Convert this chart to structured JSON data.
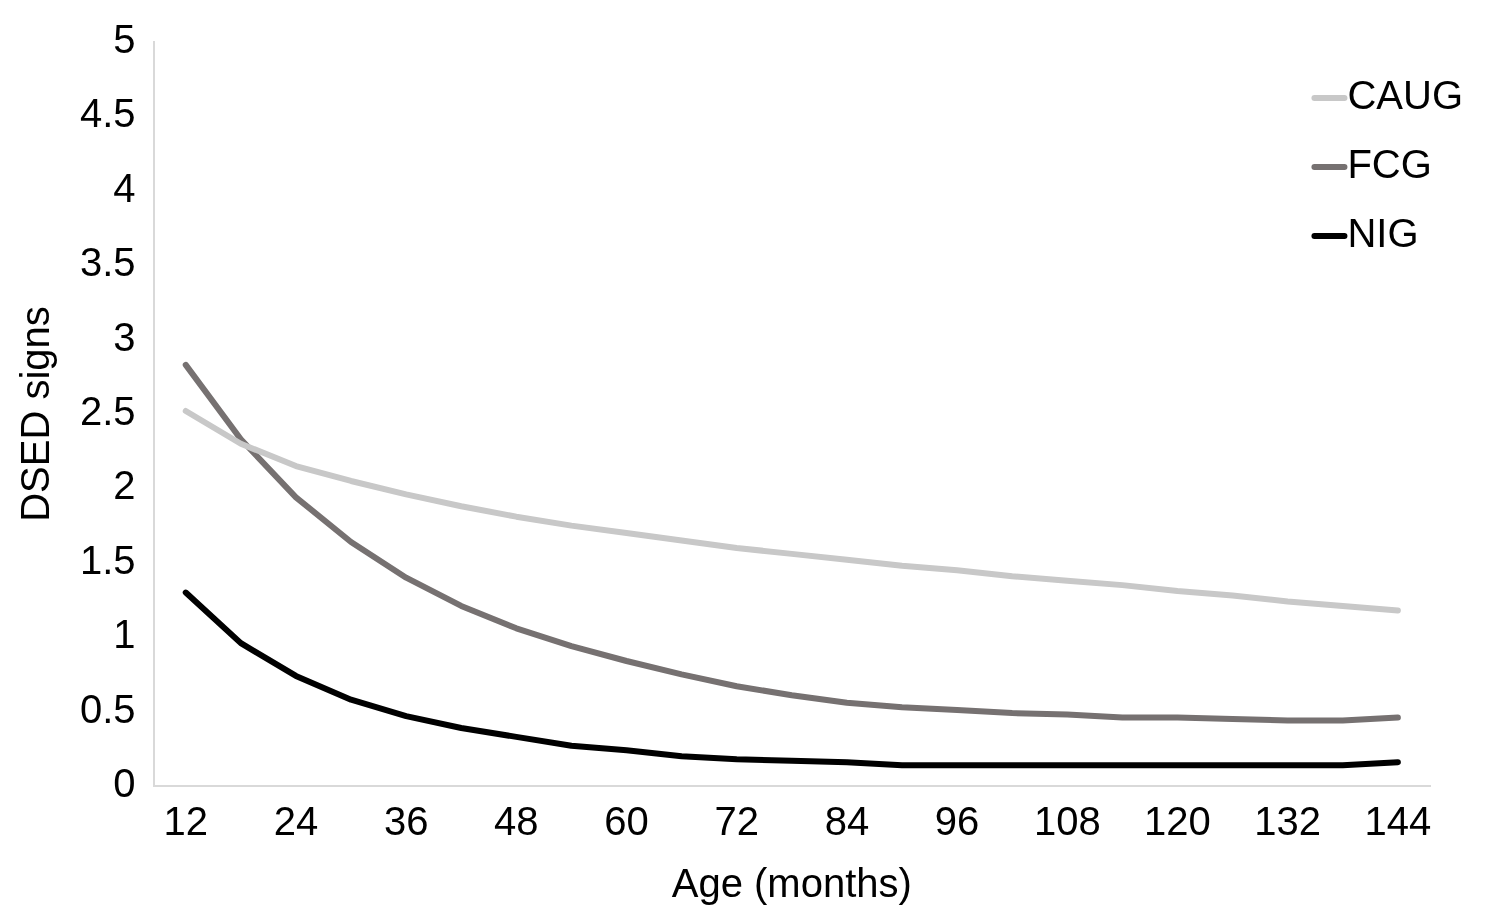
{
  "chart_data": {
    "type": "line",
    "xlabel": "Age (months)",
    "ylabel": "DSED signs",
    "x": [
      12,
      18,
      24,
      30,
      36,
      42,
      48,
      54,
      60,
      66,
      72,
      78,
      84,
      90,
      96,
      102,
      108,
      114,
      120,
      126,
      132,
      138,
      144
    ],
    "xlim": [
      8.5,
      147.5
    ],
    "xticks": [
      12,
      24,
      36,
      48,
      60,
      72,
      84,
      96,
      108,
      120,
      132,
      144
    ],
    "ylim": [
      0,
      5
    ],
    "yticks": [
      0,
      0.5,
      1,
      1.5,
      2,
      2.5,
      3,
      3.5,
      4,
      4.5,
      5
    ],
    "grid": false,
    "legend": "top right",
    "marker": "none",
    "line_style": "solid",
    "series": [
      {
        "name": "CAUG",
        "color": "#c8c8c8",
        "values": [
          2.52,
          2.3,
          2.15,
          2.05,
          1.96,
          1.88,
          1.81,
          1.75,
          1.7,
          1.65,
          1.6,
          1.56,
          1.52,
          1.48,
          1.45,
          1.41,
          1.38,
          1.35,
          1.31,
          1.28,
          1.24,
          1.21,
          1.18
        ]
      },
      {
        "name": "FCG",
        "color": "#767171",
        "values": [
          2.83,
          2.33,
          1.94,
          1.64,
          1.4,
          1.21,
          1.06,
          0.94,
          0.84,
          0.75,
          0.67,
          0.61,
          0.56,
          0.53,
          0.51,
          0.49,
          0.48,
          0.46,
          0.46,
          0.45,
          0.44,
          0.44,
          0.46
        ]
      },
      {
        "name": "NIG",
        "color": "#000000",
        "values": [
          1.3,
          0.96,
          0.74,
          0.58,
          0.47,
          0.39,
          0.33,
          0.27,
          0.24,
          0.2,
          0.18,
          0.17,
          0.16,
          0.14,
          0.14,
          0.14,
          0.14,
          0.14,
          0.14,
          0.14,
          0.14,
          0.14,
          0.16
        ]
      }
    ]
  }
}
